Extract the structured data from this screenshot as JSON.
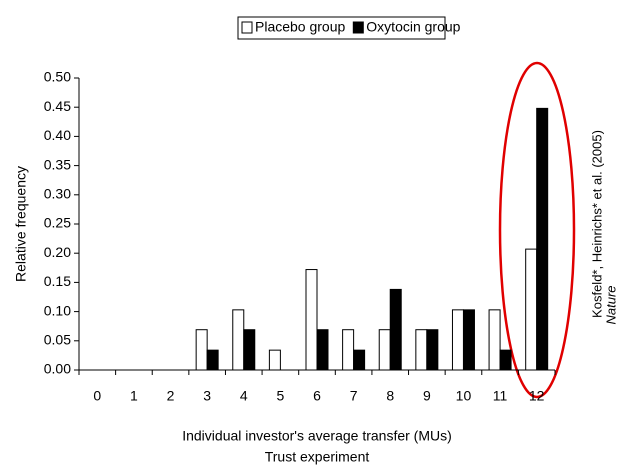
{
  "chart_data": {
    "type": "bar",
    "categories": [
      "0",
      "1",
      "2",
      "3",
      "4",
      "5",
      "6",
      "7",
      "8",
      "9",
      "10",
      "11",
      "12"
    ],
    "series": [
      {
        "name": "Placebo group",
        "color": "#ffffff",
        "values": [
          0,
          0,
          0,
          0.069,
          0.103,
          0.034,
          0.172,
          0.069,
          0.069,
          0.069,
          0.103,
          0.103,
          0.207
        ]
      },
      {
        "name": "Oxytocin group",
        "color": "#000000",
        "values": [
          0,
          0,
          0,
          0.034,
          0.069,
          0,
          0.069,
          0.034,
          0.138,
          0.069,
          0.103,
          0.034,
          0.448
        ]
      }
    ],
    "ylim": [
      0,
      0.5
    ],
    "yticks": [
      {
        "value": 0,
        "label": "0.00"
      },
      {
        "value": 0.05,
        "label": "0.05"
      },
      {
        "value": 0.1,
        "label": "0.10"
      },
      {
        "value": 0.15,
        "label": "0.15"
      },
      {
        "value": 0.2,
        "label": "0.20"
      },
      {
        "value": 0.25,
        "label": "0.25"
      },
      {
        "value": 0.3,
        "label": "0.30"
      },
      {
        "value": 0.35,
        "label": "0.35"
      },
      {
        "value": 0.4,
        "label": "0.40"
      },
      {
        "value": 0.45,
        "label": "0.45"
      },
      {
        "value": 0.5,
        "label": "0.50"
      }
    ],
    "x_label": "Individual investor's average transfer (MUs)",
    "y_label": "Relative frequency",
    "annotations": [
      "Trust experiment",
      "Kosfeld*, Heinrichs* et al. (2005)",
      "Nature"
    ],
    "grid": false
  }
}
